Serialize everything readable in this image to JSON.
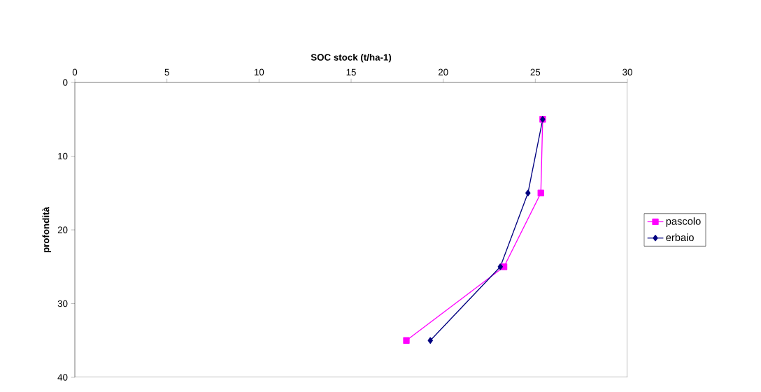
{
  "chart_data": {
    "type": "line",
    "xlabel": "SOC stock (t/ha-1)",
    "ylabel": "profondità",
    "xlim": [
      0,
      30
    ],
    "xticks": [
      0,
      5,
      10,
      15,
      20,
      25,
      30
    ],
    "ylim": [
      40,
      0
    ],
    "yticks": [
      0,
      10,
      20,
      30,
      40
    ],
    "legend": "right",
    "line_style": "solid",
    "series": [
      {
        "name": "pascolo",
        "color": "#ff00ff",
        "marker": "square",
        "x": [
          25.4,
          25.3,
          23.3,
          18.0
        ],
        "values": [
          5,
          15,
          25,
          35
        ]
      },
      {
        "name": "erbaio",
        "color": "#000080",
        "marker": "diamond",
        "x": [
          25.4,
          24.6,
          23.1,
          19.3
        ],
        "values": [
          5,
          15,
          25,
          35
        ]
      }
    ]
  }
}
